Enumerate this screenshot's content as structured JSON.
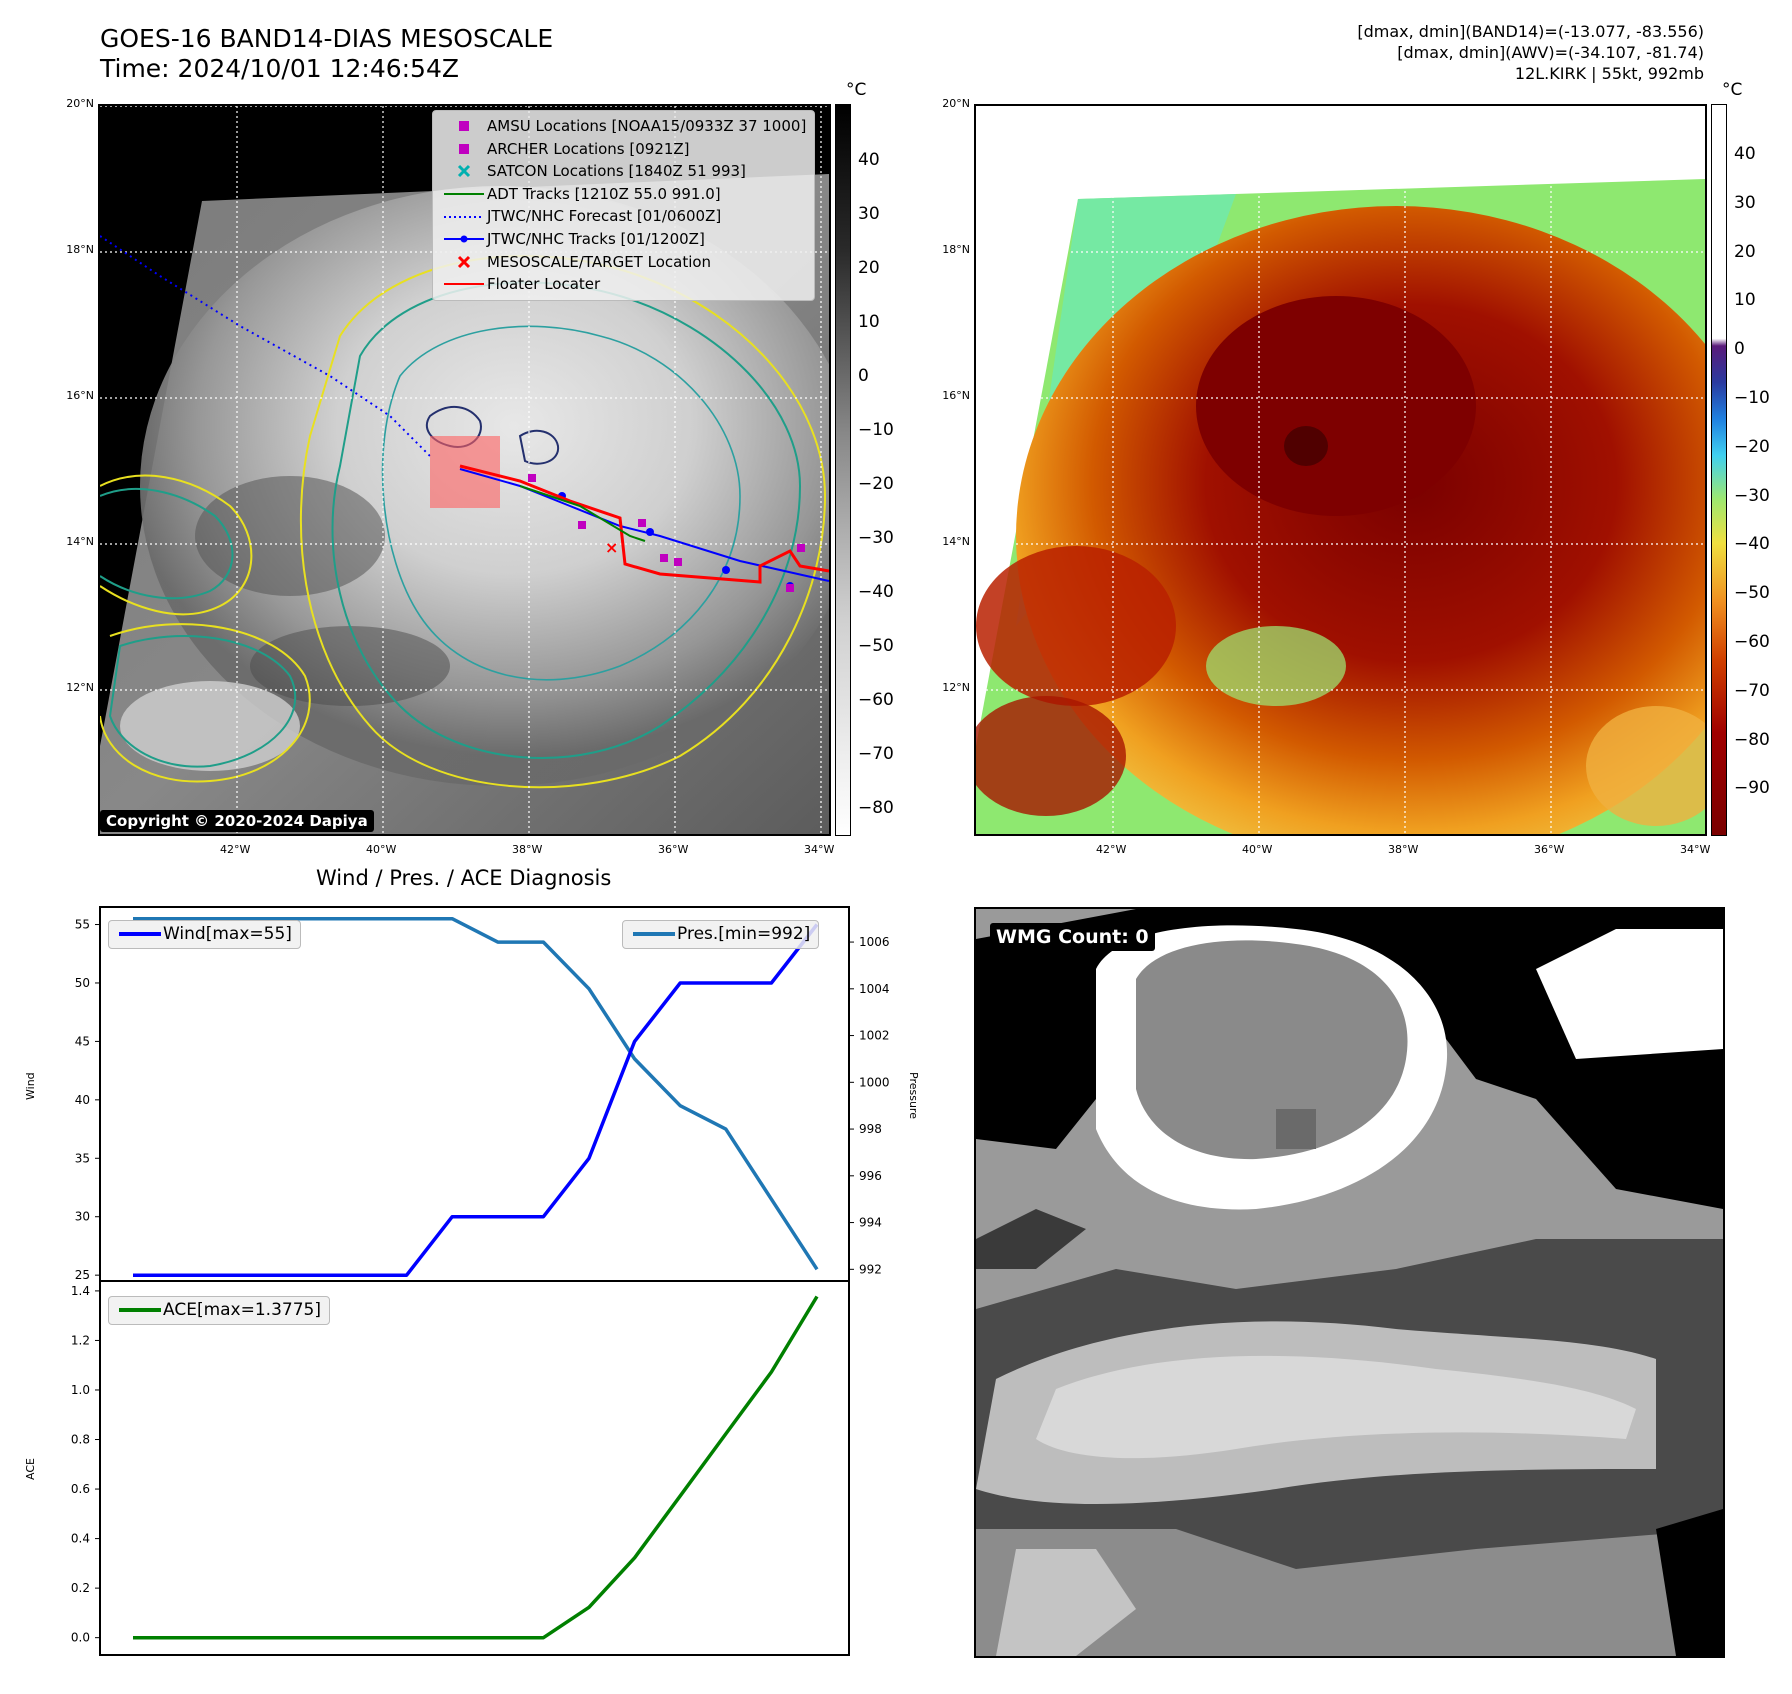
{
  "header": {
    "title_line1": "GOES-16 BAND14-DIAS MESOSCALE",
    "title_line2": "Time: 2024/10/01 12:46:54Z",
    "info_line1": "[dmax, dmin](BAND14)=(-13.077, -83.556)",
    "info_line2": "[dmax, dmin](AWV)=(-34.107, -81.74)",
    "info_line3": "12L.KIRK | 55kt, 992mb"
  },
  "map_axes": {
    "lat_labels": [
      "20°N",
      "18°N",
      "16°N",
      "14°N",
      "12°N"
    ],
    "lon_labels": [
      "42°W",
      "40°W",
      "38°W",
      "36°W",
      "34°W"
    ]
  },
  "colorbar_left": {
    "unit": "°C",
    "ticks": [
      "40",
      "30",
      "20",
      "10",
      "0",
      "−10",
      "−20",
      "−30",
      "−40",
      "−50",
      "−60",
      "−70",
      "−80"
    ]
  },
  "colorbar_right": {
    "unit": "°C",
    "ticks": [
      "40",
      "30",
      "20",
      "10",
      "0",
      "−10",
      "−20",
      "−30",
      "−40",
      "−50",
      "−60",
      "−70",
      "−80",
      "−90"
    ]
  },
  "legend": [
    {
      "label": "AMSU Locations [NOAA15/0933Z 37 1000]",
      "symbol": "square",
      "color": "#c000c0"
    },
    {
      "label": "ARCHER Locations [0921Z]",
      "symbol": "square",
      "color": "#c000c0"
    },
    {
      "label": "SATCON Locations [1840Z 51 993]",
      "symbol": "x",
      "color": "#00b0b0"
    },
    {
      "label": "ADT Tracks [1210Z 55.0 991.0]",
      "symbol": "line",
      "color": "#008000"
    },
    {
      "label": "JTWC/NHC Forecast [01/0600Z]",
      "symbol": "dotted",
      "color": "#0000ff"
    },
    {
      "label": "JTWC/NHC Tracks [01/1200Z]",
      "symbol": "line-dot",
      "color": "#0000ff"
    },
    {
      "label": "MESOSCALE/TARGET Location",
      "symbol": "x",
      "color": "#ff0000"
    },
    {
      "label": "Floater Locater",
      "symbol": "line",
      "color": "#ff0000"
    }
  ],
  "copyright": "Copyright © 2020-2024 Dapiya",
  "wmg_label": "WMG Count: 0",
  "chart_data": [
    {
      "type": "line",
      "title": "Wind / Pres. / ACE Diagnosis",
      "x": [
        0,
        1,
        2,
        3,
        4,
        5,
        6,
        7,
        8,
        9,
        10,
        11,
        12,
        13,
        14,
        15
      ],
      "series": [
        {
          "name": "Wind[max=55]",
          "axis": "left",
          "color": "#0000ff",
          "values": [
            25,
            25,
            25,
            25,
            25,
            25,
            25,
            30,
            30,
            30,
            35,
            45,
            50,
            50,
            50,
            55
          ]
        },
        {
          "name": "Pres.[min=992]",
          "axis": "right",
          "color": "#1f77b4",
          "values": [
            1007,
            1007,
            1007,
            1007,
            1007,
            1007,
            1007,
            1007,
            1006,
            1006,
            1004,
            1001,
            999,
            998,
            995,
            992
          ]
        }
      ],
      "ylabel": "Wind",
      "y2label": "Pressure",
      "ylim": [
        24.5,
        56.5
      ],
      "y2lim": [
        991.5,
        1007.5
      ],
      "yticks": [
        25,
        30,
        35,
        40,
        45,
        50,
        55
      ],
      "y2ticks": [
        992,
        994,
        996,
        998,
        1000,
        1002,
        1004,
        1006
      ]
    },
    {
      "type": "line",
      "x": [
        0,
        1,
        2,
        3,
        4,
        5,
        6,
        7,
        8,
        9,
        10,
        11,
        12,
        13,
        14,
        15
      ],
      "series": [
        {
          "name": "ACE[max=1.3775]",
          "color": "#008000",
          "values": [
            0,
            0,
            0,
            0,
            0,
            0,
            0,
            0,
            0,
            0,
            0.1225,
            0.3225,
            0.5725,
            0.8225,
            1.0725,
            1.3775
          ]
        }
      ],
      "ylabel": "ACE",
      "ylim": [
        -0.07,
        1.44
      ],
      "yticks": [
        "0.0",
        "0.2",
        "0.4",
        "0.6",
        "0.8",
        "1.0",
        "1.2",
        "1.4"
      ]
    }
  ]
}
